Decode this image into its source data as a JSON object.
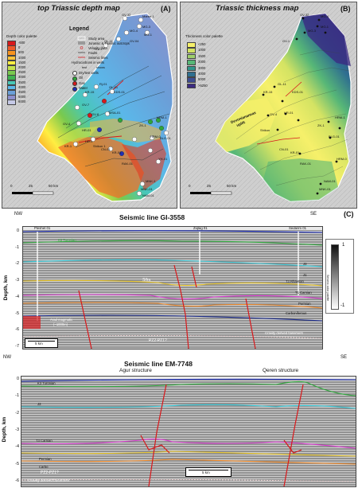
{
  "panelA": {
    "title": "top Triassic depth map",
    "letter": "(A)",
    "legend_title": "Legend",
    "legend_items": [
      "Study area",
      "Jurassic & Triassic outcrops",
      "Velocity data",
      "Faults",
      "Seismic lines"
    ],
    "palette_title": "Depth color palette",
    "palette": [
      {
        "label": "-500",
        "color": "#d7191c"
      },
      {
        "label": "0",
        "color": "#ef5a2a"
      },
      {
        "label": "500",
        "color": "#f7931e"
      },
      {
        "label": "1000",
        "color": "#fcc33a"
      },
      {
        "label": "1500",
        "color": "#ffee42"
      },
      {
        "label": "2000",
        "color": "#c4e34d"
      },
      {
        "label": "2500",
        "color": "#79c94e"
      },
      {
        "label": "3000",
        "color": "#3fb34f"
      },
      {
        "label": "3500",
        "color": "#48c7b7"
      },
      {
        "label": "4000",
        "color": "#5bb7e9"
      },
      {
        "label": "4500",
        "color": "#6b9fd8"
      },
      {
        "label": "5000",
        "color": "#8d8fcc"
      },
      {
        "label": "6000",
        "color": "#c5c9e6"
      }
    ],
    "hc_title": "Hydrocarbons in wells",
    "hc_items": [
      {
        "label": "Dry/test wells",
        "color": "#ffffff"
      },
      {
        "label": "Oil",
        "color": "#2ea63b"
      },
      {
        "label": "Gas",
        "color": "#d7191c"
      },
      {
        "label": "Water",
        "color": "#1f2fb5"
      }
    ],
    "hc_sub": [
      "test",
      "shows"
    ],
    "scale": {
      "zero": "0",
      "mid": "25",
      "end": "50 km"
    },
    "wells": [
      "GV-32",
      "Marbe 1",
      "MG-3",
      "MG-4",
      "MG-1",
      "GV-1",
      "GL-11",
      "GV-04",
      "GL-01",
      "Rj-01",
      "KDS-01",
      "KR-15",
      "GV-7",
      "GV-8",
      "GV-4",
      "MSA-01",
      "HR-01",
      "HR-1",
      "Shikun 1",
      "CN-01",
      "KR-01",
      "KR-1",
      "RAK-01",
      "ZK-1",
      "HRM-1",
      "BLG-01",
      "HRM-0",
      "YH-01",
      "MNK-01",
      "NAM-01",
      "MNK-1"
    ]
  },
  "panelB": {
    "title": "Triassic thickness map",
    "letter": "(B)",
    "palette_title": "Thickness color palette",
    "palette": [
      {
        "label": "<250",
        "color": "#f6f06a"
      },
      {
        "label": "1000",
        "color": "#d4e363"
      },
      {
        "label": "1500",
        "color": "#9ecf6b"
      },
      {
        "label": "2000",
        "color": "#57b777"
      },
      {
        "label": "3000",
        "color": "#31958a"
      },
      {
        "label": "4000",
        "color": "#2f6f90"
      },
      {
        "label": "5000",
        "color": "#3d4c91"
      },
      {
        "label": ">5250",
        "color": "#3b2a82"
      }
    ],
    "annotations": [
      "Devoniananeas",
      "uplift"
    ],
    "scale": {
      "zero": "0",
      "mid": "25",
      "end": "50 km"
    },
    "wells": [
      "GV-32",
      "MG-3",
      "MG-4",
      "MG-1",
      "GV-1",
      "GL-11",
      "KDS-01",
      "KR-15",
      "GV-4",
      "HR-01",
      "Shikun",
      "CN-01",
      "KR-01",
      "RAK-01",
      "ZK-1",
      "HRM-1",
      "BLG-01",
      "HRM-0",
      "MNK-01",
      "NAM-01"
    ]
  },
  "letterC": "(C)",
  "seismic1": {
    "title": "Seismic line GI-3558",
    "nw": "NW",
    "se": "SE",
    "ylabel": "Depth, km",
    "yticks": [
      "0",
      "-1",
      "-2",
      "-3",
      "-4",
      "-5",
      "-6",
      "-7"
    ],
    "wells": [
      "Pleshet 01",
      "Ziqlag 01",
      "Sedarim 01"
    ],
    "horizons": [
      "K3 Turonian",
      "J3",
      "J1",
      "T3 Rhaetian",
      "T1 Carnian",
      "Permian",
      "Carboniferous",
      "Gravity derived basement",
      "Sifra",
      "PZ2-PZ1?"
    ],
    "box_labels": [
      "Arad magmatic",
      "(~1000m)"
    ],
    "scale_label": "5 km",
    "colorbar": {
      "top": "1",
      "bottom": "-1",
      "label": "Seismic color palette"
    }
  },
  "seismic2": {
    "title": "Seismic line EM-7748",
    "nw": "NW",
    "se": "SE",
    "ylabel": "Depth, km",
    "yticks": [
      "0",
      "-1",
      "-2",
      "-3",
      "-4",
      "-5",
      "-6"
    ],
    "structures": [
      "Agur structure",
      "Qeren structure"
    ],
    "horizons": [
      "K3 Turonian",
      "J3",
      "T3 Carnian",
      "Permian",
      "Carbo",
      "PZ2-PZ1?",
      "Gravity derived basement"
    ],
    "scale_label": "5 km"
  }
}
